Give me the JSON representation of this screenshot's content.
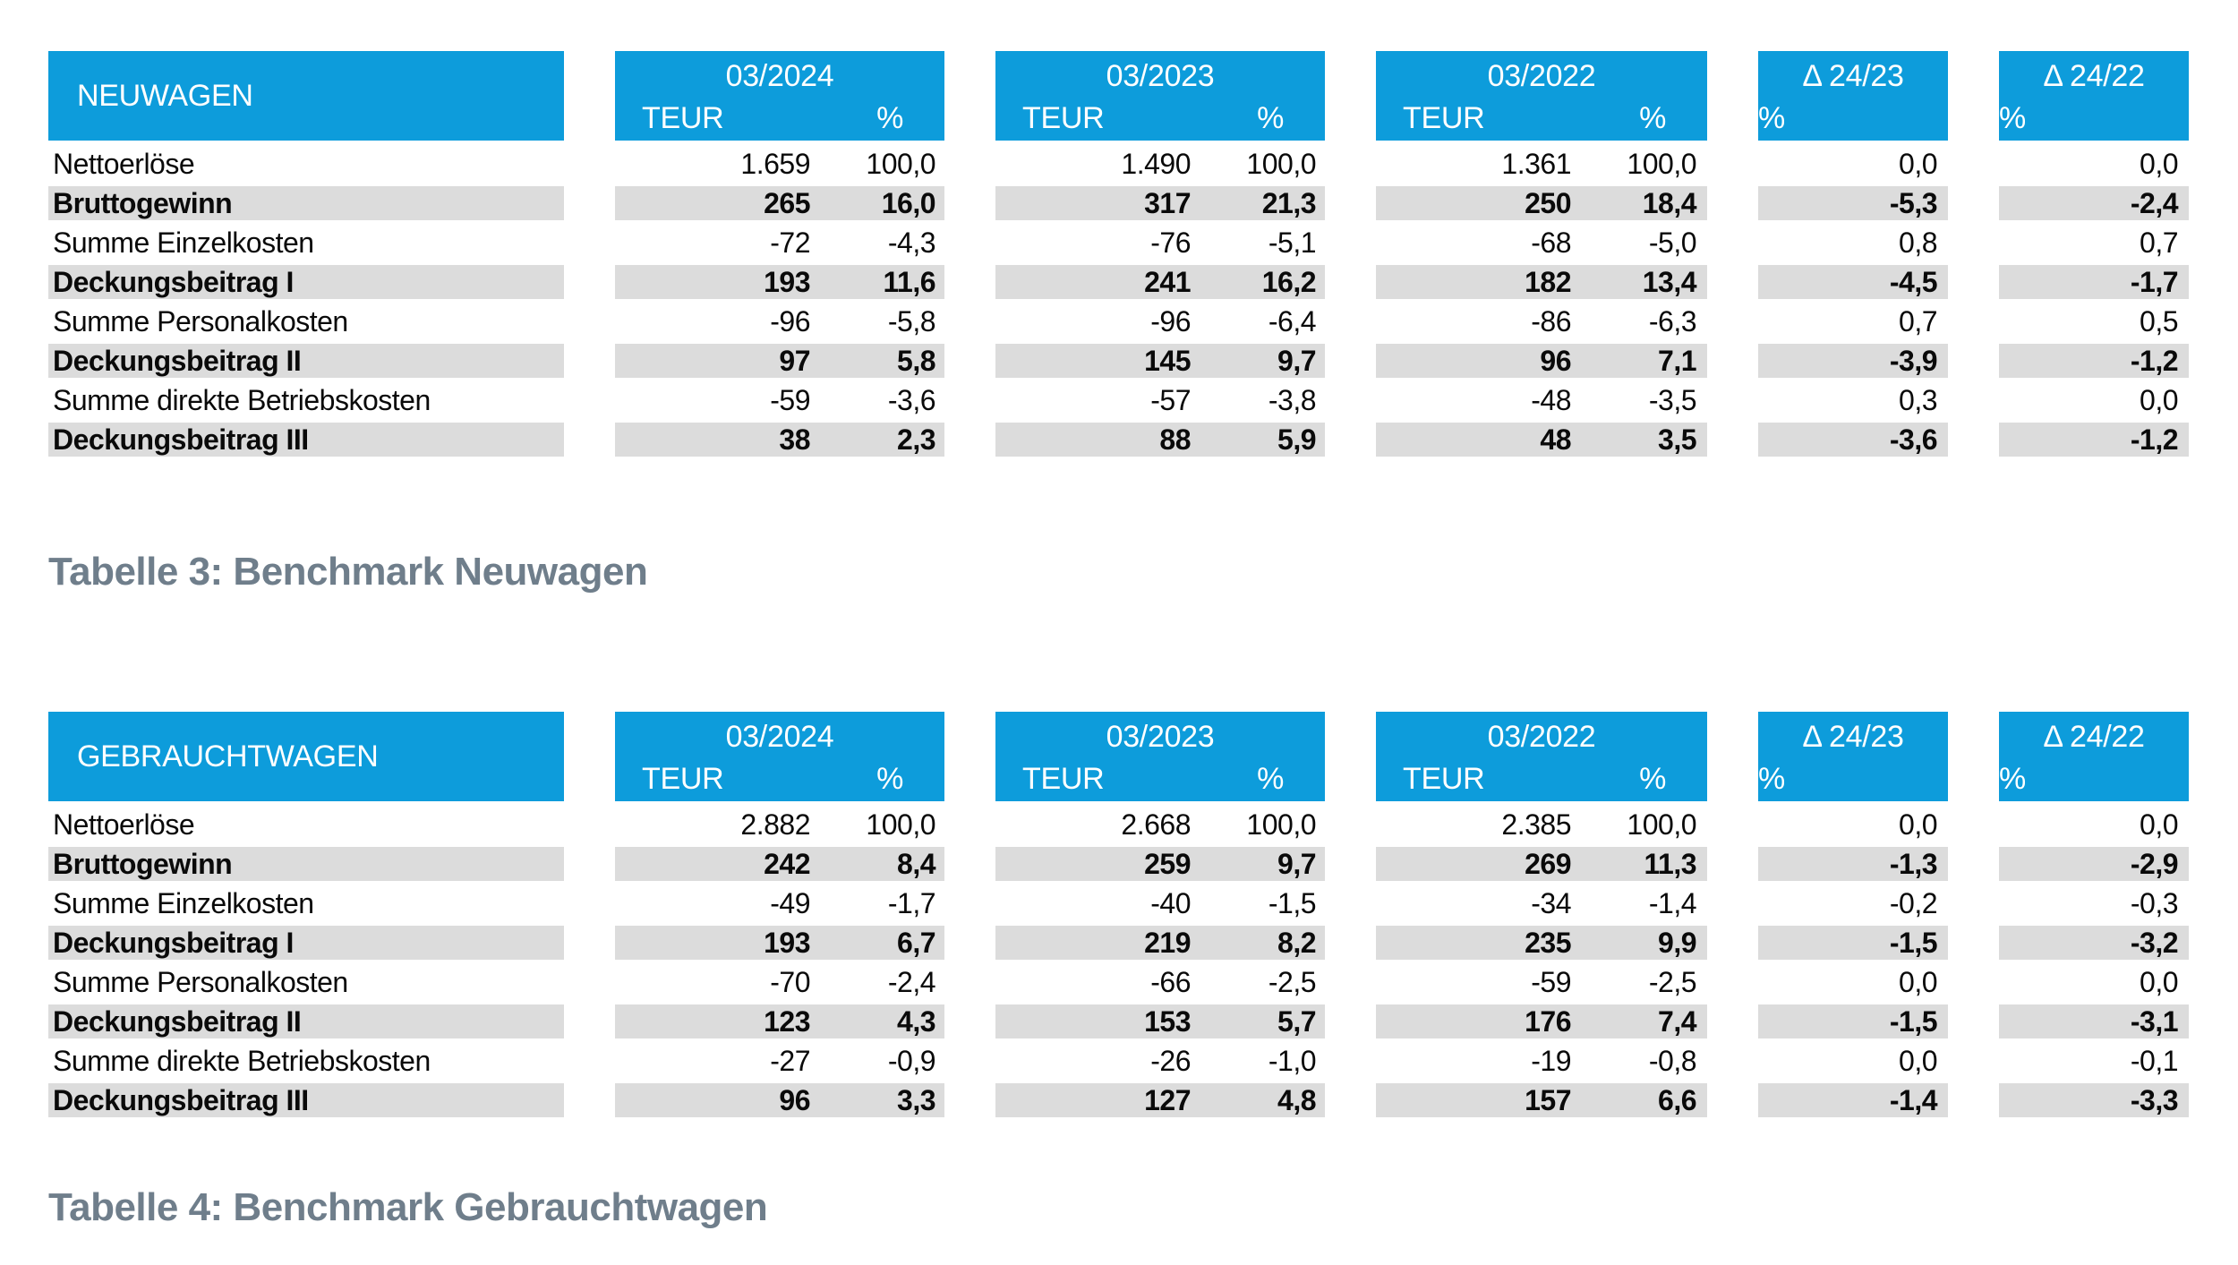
{
  "colors": {
    "header_blue": "#0d9cdb",
    "shaded_row_gray": "#dcdcdc",
    "caption_gray_blue": "#6f7e8b",
    "text_black": "#0a0a0a",
    "header_text_white": "#ffffff"
  },
  "tables": [
    {
      "title": "NEUWAGEN",
      "caption": "Tabelle 3: Benchmark Neuwagen",
      "columns": [
        {
          "period": "03/2024",
          "unit": "TEUR",
          "pct": "%"
        },
        {
          "period": "03/2023",
          "unit": "TEUR",
          "pct": "%"
        },
        {
          "period": "03/2022",
          "unit": "TEUR",
          "pct": "%"
        }
      ],
      "delta_columns": [
        {
          "label": "Δ 24/23",
          "pct": "%"
        },
        {
          "label": "Δ 24/22",
          "pct": "%"
        }
      ],
      "rows": [
        {
          "label": "Nettoerlöse",
          "bold": false,
          "values": [
            "1.659",
            "100,0",
            "1.490",
            "100,0",
            "1.361",
            "100,0",
            "0,0",
            "0,0"
          ]
        },
        {
          "label": "Bruttogewinn",
          "bold": true,
          "values": [
            "265",
            "16,0",
            "317",
            "21,3",
            "250",
            "18,4",
            "-5,3",
            "-2,4"
          ]
        },
        {
          "label": "Summe Einzelkosten",
          "bold": false,
          "values": [
            "-72",
            "-4,3",
            "-76",
            "-5,1",
            "-68",
            "-5,0",
            "0,8",
            "0,7"
          ]
        },
        {
          "label": "Deckungsbeitrag I",
          "bold": true,
          "values": [
            "193",
            "11,6",
            "241",
            "16,2",
            "182",
            "13,4",
            "-4,5",
            "-1,7"
          ]
        },
        {
          "label": "Summe Personalkosten",
          "bold": false,
          "values": [
            "-96",
            "-5,8",
            "-96",
            "-6,4",
            "-86",
            "-6,3",
            "0,7",
            "0,5"
          ]
        },
        {
          "label": "Deckungsbeitrag II",
          "bold": true,
          "values": [
            "97",
            "5,8",
            "145",
            "9,7",
            "96",
            "7,1",
            "-3,9",
            "-1,2"
          ]
        },
        {
          "label": "Summe direkte Betriebskosten",
          "bold": false,
          "values": [
            "-59",
            "-3,6",
            "-57",
            "-3,8",
            "-48",
            "-3,5",
            "0,3",
            "0,0"
          ]
        },
        {
          "label": "Deckungsbeitrag III",
          "bold": true,
          "values": [
            "38",
            "2,3",
            "88",
            "5,9",
            "48",
            "3,5",
            "-3,6",
            "-1,2"
          ]
        }
      ]
    },
    {
      "title": "GEBRAUCHTWAGEN",
      "caption": "Tabelle 4: Benchmark Gebrauchtwagen",
      "columns": [
        {
          "period": "03/2024",
          "unit": "TEUR",
          "pct": "%"
        },
        {
          "period": "03/2023",
          "unit": "TEUR",
          "pct": "%"
        },
        {
          "period": "03/2022",
          "unit": "TEUR",
          "pct": "%"
        }
      ],
      "delta_columns": [
        {
          "label": "Δ 24/23",
          "pct": "%"
        },
        {
          "label": "Δ 24/22",
          "pct": "%"
        }
      ],
      "rows": [
        {
          "label": "Nettoerlöse",
          "bold": false,
          "values": [
            "2.882",
            "100,0",
            "2.668",
            "100,0",
            "2.385",
            "100,0",
            "0,0",
            "0,0"
          ]
        },
        {
          "label": "Bruttogewinn",
          "bold": true,
          "values": [
            "242",
            "8,4",
            "259",
            "9,7",
            "269",
            "11,3",
            "-1,3",
            "-2,9"
          ]
        },
        {
          "label": "Summe Einzelkosten",
          "bold": false,
          "values": [
            "-49",
            "-1,7",
            "-40",
            "-1,5",
            "-34",
            "-1,4",
            "-0,2",
            "-0,3"
          ]
        },
        {
          "label": "Deckungsbeitrag I",
          "bold": true,
          "values": [
            "193",
            "6,7",
            "219",
            "8,2",
            "235",
            "9,9",
            "-1,5",
            "-3,2"
          ]
        },
        {
          "label": "Summe Personalkosten",
          "bold": false,
          "values": [
            "-70",
            "-2,4",
            "-66",
            "-2,5",
            "-59",
            "-2,5",
            "0,0",
            "0,0"
          ]
        },
        {
          "label": "Deckungsbeitrag II",
          "bold": true,
          "values": [
            "123",
            "4,3",
            "153",
            "5,7",
            "176",
            "7,4",
            "-1,5",
            "-3,1"
          ]
        },
        {
          "label": "Summe direkte Betriebskosten",
          "bold": false,
          "values": [
            "-27",
            "-0,9",
            "-26",
            "-1,0",
            "-19",
            "-0,8",
            "0,0",
            "-0,1"
          ]
        },
        {
          "label": "Deckungsbeitrag III",
          "bold": true,
          "values": [
            "96",
            "3,3",
            "127",
            "4,8",
            "157",
            "6,6",
            "-1,4",
            "-3,3"
          ]
        }
      ]
    }
  ]
}
